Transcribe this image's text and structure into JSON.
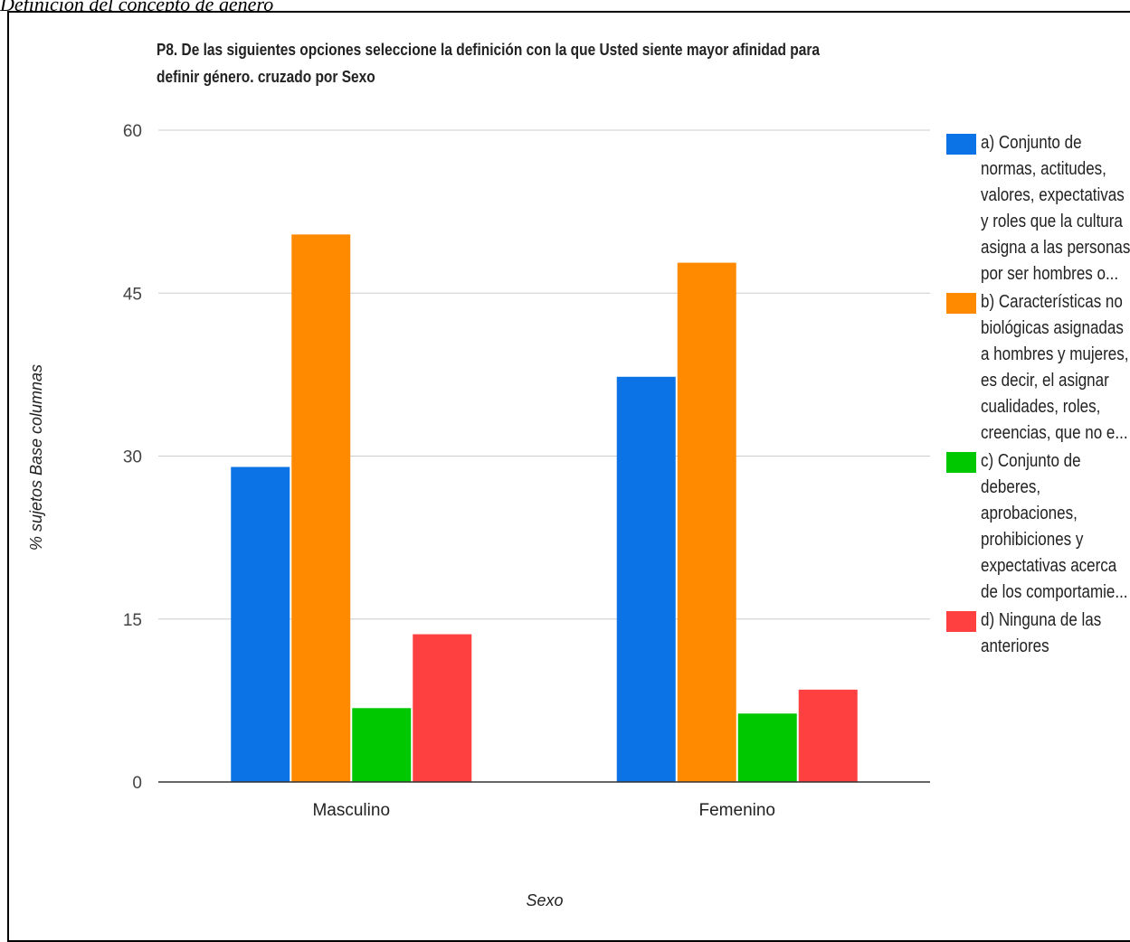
{
  "caption": "Definición del concepto de género",
  "chart_data": {
    "type": "bar",
    "title": "P8. De las siguientes opciones seleccione la definición con la que Usted siente mayor afinidad para definir género.  cruzado por Sexo",
    "xlabel": "Sexo",
    "ylabel": "% sujetos Base columnas",
    "ylim": [
      0,
      60
    ],
    "yticks": [
      0,
      15,
      30,
      45,
      60
    ],
    "grid": true,
    "legend_position": "right",
    "categories": [
      "Masculino",
      "Femenino"
    ],
    "series": [
      {
        "name": "a) Conjunto de normas, actitudes, valores, expectativas y roles que la cultura asigna a las personas por ser hombres o...",
        "color": "#0b73e6",
        "values": [
          29,
          37.3
        ]
      },
      {
        "name": "b) Características no biológicas asignadas a hombres y mujeres, es decir, el asignar cualidades, roles, creencias, que no e...",
        "color": "#ff8a00",
        "values": [
          50.4,
          47.8
        ]
      },
      {
        "name": "c) Conjunto de deberes, aprobaciones, prohibiciones y expectativas acerca de los comportamie...",
        "color": "#00c800",
        "values": [
          6.8,
          6.3
        ]
      },
      {
        "name": "d) Ninguna de las anteriores",
        "color": "#ff4040",
        "values": [
          13.6,
          8.5
        ]
      }
    ]
  }
}
